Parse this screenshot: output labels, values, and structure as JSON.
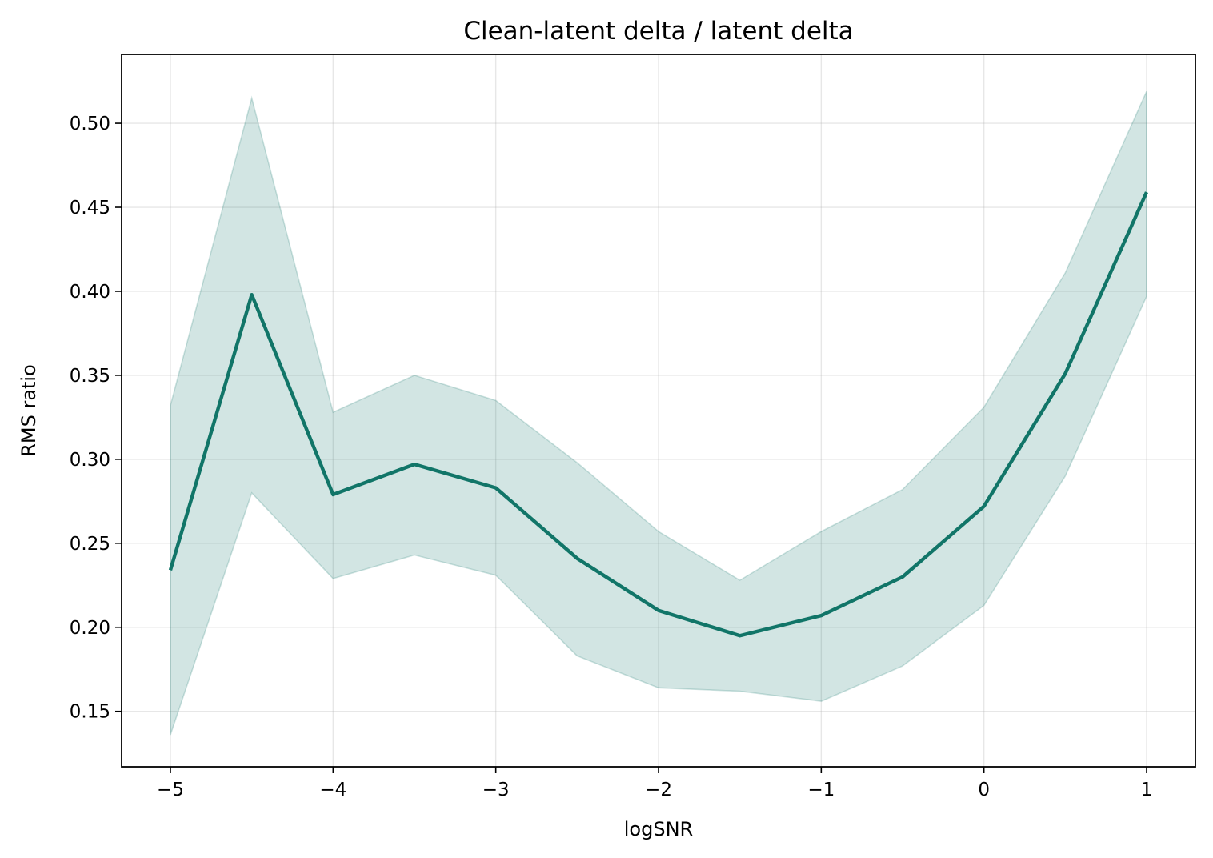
{
  "chart_data": {
    "type": "line",
    "title": "Clean-latent delta / latent delta",
    "xlabel": "logSNR",
    "ylabel": "RMS ratio",
    "xlim": [
      -5.3,
      1.3
    ],
    "ylim": [
      0.117,
      0.541
    ],
    "grid": true,
    "x_ticks": [
      -5,
      -4,
      -3,
      -2,
      -1,
      0,
      1
    ],
    "x_tick_labels": [
      "−5",
      "−4",
      "−3",
      "−2",
      "−1",
      "0",
      "1"
    ],
    "y_ticks": [
      0.15,
      0.2,
      0.25,
      0.3,
      0.35,
      0.4,
      0.45,
      0.5
    ],
    "y_tick_labels": [
      "0.15",
      "0.20",
      "0.25",
      "0.30",
      "0.35",
      "0.40",
      "0.45",
      "0.50"
    ],
    "x": [
      -5,
      -4.5,
      -4,
      -3.5,
      -3,
      -2.5,
      -2,
      -1.5,
      -1,
      -0.5,
      0,
      0.5,
      1
    ],
    "series": [
      {
        "values": [
          0.234,
          0.398,
          0.279,
          0.297,
          0.283,
          0.241,
          0.21,
          0.195,
          0.207,
          0.23,
          0.272,
          0.351,
          0.459
        ],
        "upper": [
          0.332,
          0.515,
          0.328,
          0.35,
          0.335,
          0.298,
          0.257,
          0.228,
          0.257,
          0.282,
          0.331,
          0.411,
          0.519
        ],
        "lower": [
          0.136,
          0.28,
          0.229,
          0.243,
          0.231,
          0.183,
          0.164,
          0.162,
          0.156,
          0.177,
          0.213,
          0.29,
          0.397
        ],
        "color": "#117568",
        "band_color": "#117568"
      }
    ]
  }
}
